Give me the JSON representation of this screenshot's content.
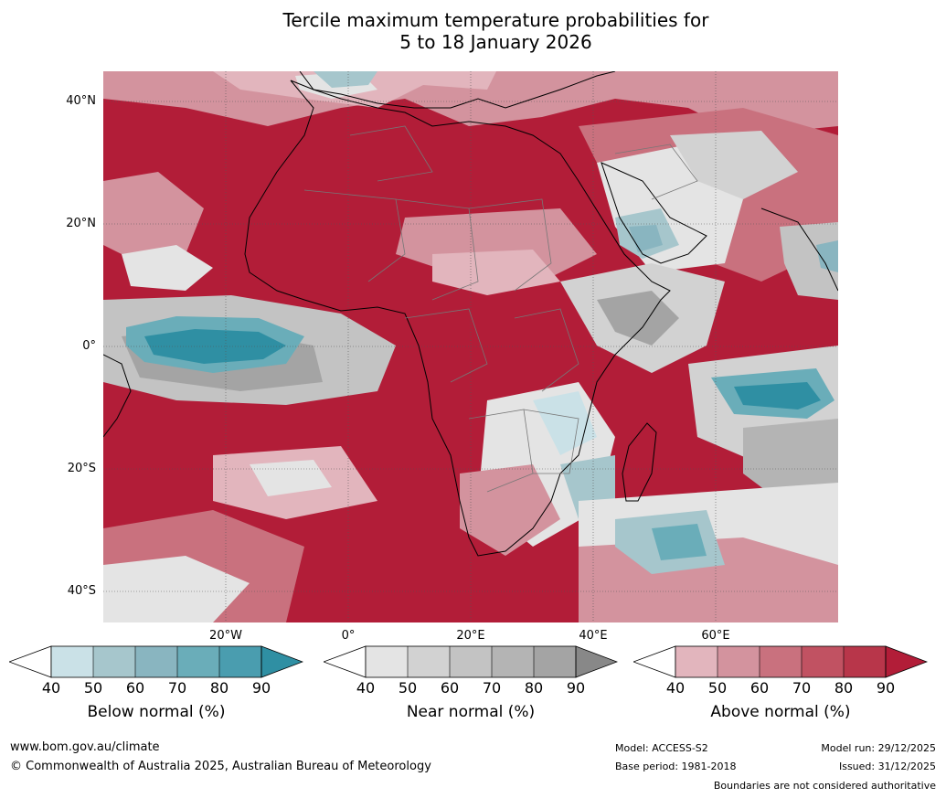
{
  "title": {
    "line1": "Tercile maximum temperature probabilities for",
    "line2": "5 to 18 January 2026"
  },
  "map": {
    "region": "Africa and surrounding oceans",
    "latitude_labels": [
      "40°N",
      "20°N",
      "0°",
      "20°S",
      "40°S"
    ],
    "longitude_labels": [
      "20°W",
      "0°",
      "20°E",
      "40°E",
      "60°E"
    ],
    "colors": {
      "above_dominant": "#b21d38",
      "below_peak": "#2f8fa3",
      "near_dark": "#999999"
    },
    "map_regions": [
      {
        "category": "above",
        "level": 90,
        "place": "Atlantic Ocean, Sahara and central Africa"
      },
      {
        "category": "above",
        "level": 60,
        "place": "Mediterranean and Middle East"
      },
      {
        "category": "below",
        "level": 90,
        "place": "equatorial Atlantic near 0°, 20°W"
      },
      {
        "category": "below",
        "level": 80,
        "place": "southern Indian Ocean near 10°S, 70°E"
      },
      {
        "category": "below",
        "level": 50,
        "place": "Arabian Peninsula and southeastern Africa"
      },
      {
        "category": "near",
        "level": 60,
        "place": "Gulf of Guinea, Horn of Africa and South Africa"
      }
    ]
  },
  "legends": [
    {
      "title": "Below normal (%)",
      "ticks": [
        "40",
        "50",
        "60",
        "70",
        "80",
        "90"
      ],
      "colors": [
        "#cae1e7",
        "#a6c6cc",
        "#89b5c0",
        "#6aadb9",
        "#4a9daf",
        "#2f8fa3"
      ]
    },
    {
      "title": "Near normal (%)",
      "ticks": [
        "40",
        "50",
        "60",
        "70",
        "80",
        "90"
      ],
      "colors": [
        "#e4e4e4",
        "#d2d2d2",
        "#c3c3c3",
        "#b4b4b4",
        "#a4a4a4",
        "#888888"
      ]
    },
    {
      "title": "Above normal (%)",
      "ticks": [
        "40",
        "50",
        "60",
        "70",
        "80",
        "90"
      ],
      "colors": [
        "#e2b5bd",
        "#d3939e",
        "#c9717e",
        "#c15262",
        "#b8364a",
        "#b21d38"
      ]
    }
  ],
  "footer": {
    "website": "www.bom.gov.au/climate",
    "copyright": "© Commonwealth of Australia 2025, Australian Bureau of Meteorology",
    "model": "Model: ACCESS-S2",
    "base_period": "Base period: 1981-2018",
    "model_run": "Model run: 29/12/2025",
    "issued": "Issued: 31/12/2025",
    "disclaimer": "Boundaries are not considered authoritative"
  }
}
